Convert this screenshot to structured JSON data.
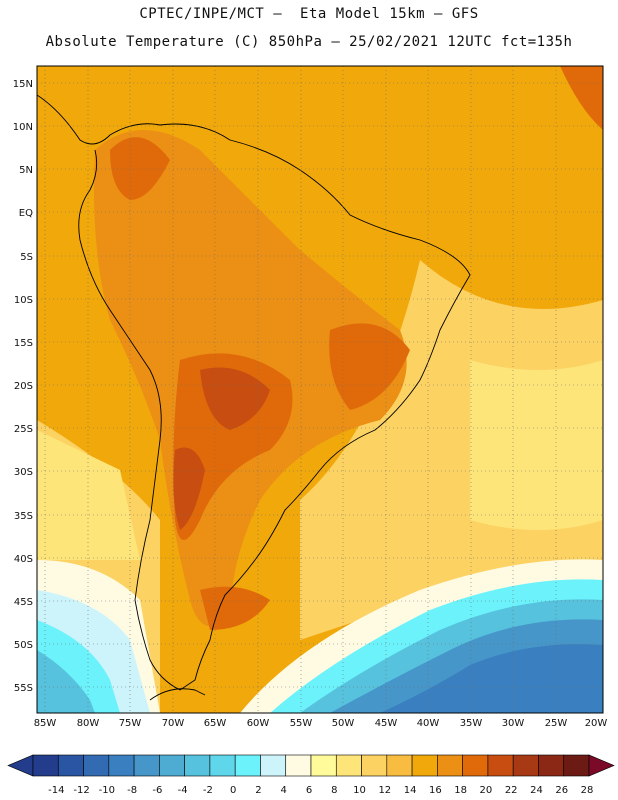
{
  "header": {
    "line1": "CPTEC/INPE/MCT –  Eta Model 15km – GFS",
    "line2": "Absolute Temperature (C) 850hPa – 25/02/2021 12UTC fct=135h"
  },
  "map": {
    "lat_labels": [
      "15N",
      "10N",
      "5N",
      "EQ",
      "5S",
      "10S",
      "15S",
      "20S",
      "25S",
      "30S",
      "35S",
      "40S",
      "45S",
      "50S",
      "55S"
    ],
    "lon_labels": [
      "85W",
      "80W",
      "75W",
      "70W",
      "65W",
      "60W",
      "55W",
      "50W",
      "45W",
      "40W",
      "35W",
      "30W",
      "25W",
      "20W"
    ]
  },
  "colorbar": {
    "values": [
      "-14",
      "-12",
      "-10",
      "-8",
      "-6",
      "-4",
      "-2",
      "0",
      "2",
      "4",
      "6",
      "8",
      "10",
      "12",
      "14",
      "16",
      "18",
      "20",
      "22",
      "24",
      "26",
      "28"
    ],
    "colors": [
      "#233c8c",
      "#2a55a3",
      "#336bb3",
      "#3a80c0",
      "#4696c9",
      "#4eabd2",
      "#56c2de",
      "#5fd6ea",
      "#6cf2fb",
      "#cdf3fb",
      "#fffbe3",
      "#fffb9a",
      "#fde57a",
      "#fcd263",
      "#f8bd40",
      "#f1a80b",
      "#eb8f15",
      "#e06a0a",
      "#c84d10",
      "#a83915",
      "#8a2815",
      "#6b1a14"
    ],
    "low_color": "#233c8c",
    "high_color": "#7a0a28"
  }
}
